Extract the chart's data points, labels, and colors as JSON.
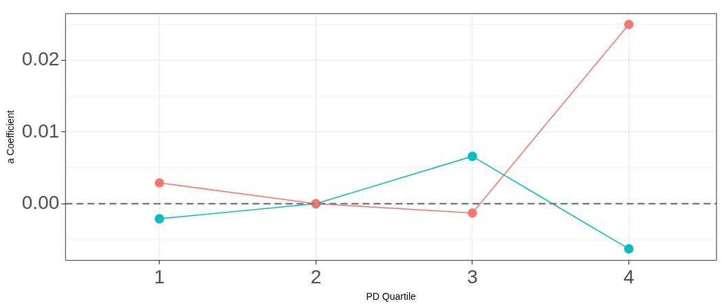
{
  "chart_data": {
    "type": "line",
    "xlabel": "PD Quartile",
    "ylabel": "a Coefficient",
    "x": [
      1,
      2,
      3,
      4
    ],
    "series": [
      {
        "color": "#f8766d",
        "values": [
          0.0029,
          0,
          -0.0013,
          0.025
        ]
      },
      {
        "color": "#00bfc4",
        "values": [
          -0.0021,
          0,
          0.0066,
          -0.0063
        ]
      }
    ],
    "xlim": [
      0.4,
      4.56
    ],
    "xticks": [
      1,
      2,
      3,
      4
    ],
    "ylim": [
      -0.0079,
      0.0265
    ],
    "yticks": [
      {
        "value": -0.005,
        "label": null
      },
      {
        "value": 0,
        "label": "0.00"
      },
      {
        "value": 0.005,
        "label": null
      },
      {
        "value": 0.01,
        "label": "0.01"
      },
      {
        "value": 0.015,
        "label": null
      },
      {
        "value": 0.02,
        "label": "0.02"
      },
      {
        "value": 0.025,
        "label": null
      }
    ],
    "ref_lines": [
      {
        "axis": "y",
        "value": 0,
        "label": null,
        "color": "#7f7f7f",
        "line_style": "dashed"
      }
    ],
    "grid": true,
    "legend": false,
    "marker": "circle",
    "line_style": "solid"
  }
}
